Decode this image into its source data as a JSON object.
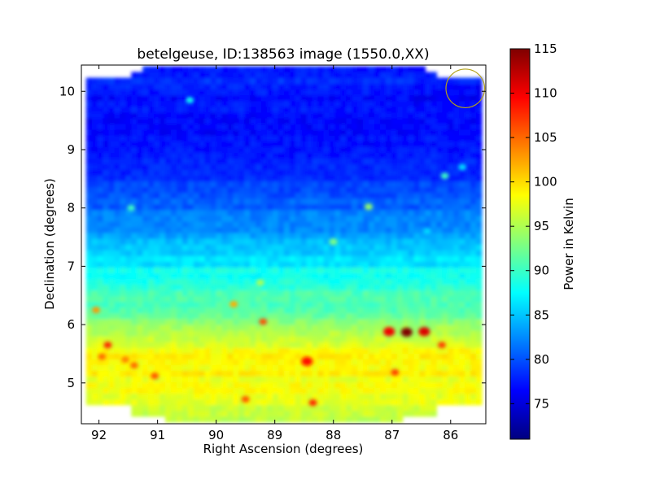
{
  "chart_data": {
    "type": "heatmap",
    "title": "betelgeuse, ID:138563 image (1550.0,XX)",
    "xlabel": "Right Ascension (degrees)",
    "ylabel": "Declination (degrees)",
    "xlim": [
      92.3,
      85.4
    ],
    "ylim": [
      4.3,
      10.45
    ],
    "x_ticks": [
      92,
      91,
      90,
      89,
      88,
      87,
      86
    ],
    "y_ticks": [
      5,
      6,
      7,
      8,
      9,
      10
    ],
    "colorbar": {
      "label": "Power in Kelvin",
      "colormap": "jet",
      "range": [
        71,
        115
      ],
      "ticks": [
        75,
        80,
        85,
        90,
        95,
        100,
        105,
        110,
        115
      ]
    },
    "dec_profile": {
      "dec": [
        4.4,
        4.7,
        5.0,
        5.3,
        5.5,
        5.75,
        6.0,
        6.2,
        6.4,
        6.6,
        6.8,
        7.0,
        7.3,
        7.6,
        8.0,
        8.5,
        9.0,
        9.5,
        10.0,
        10.4
      ],
      "power": [
        96,
        97,
        98,
        99,
        98.5,
        97,
        94,
        92,
        91,
        90,
        89,
        87,
        85,
        83,
        81,
        79,
        77.5,
        76.5,
        77.5,
        78
      ]
    },
    "hotspots": [
      {
        "ra": 86.75,
        "dec": 5.87,
        "power": 115
      },
      {
        "ra": 86.45,
        "dec": 5.88,
        "power": 111
      },
      {
        "ra": 87.05,
        "dec": 5.88,
        "power": 110
      },
      {
        "ra": 91.85,
        "dec": 5.65,
        "power": 108
      },
      {
        "ra": 91.55,
        "dec": 5.4,
        "power": 104
      },
      {
        "ra": 91.95,
        "dec": 5.45,
        "power": 105
      },
      {
        "ra": 91.05,
        "dec": 5.12,
        "power": 106
      },
      {
        "ra": 91.4,
        "dec": 5.3,
        "power": 105
      },
      {
        "ra": 86.95,
        "dec": 5.18,
        "power": 107
      },
      {
        "ra": 86.15,
        "dec": 5.65,
        "power": 107
      },
      {
        "ra": 88.45,
        "dec": 5.37,
        "power": 109
      },
      {
        "ra": 88.35,
        "dec": 4.66,
        "power": 108
      },
      {
        "ra": 89.5,
        "dec": 4.72,
        "power": 106
      },
      {
        "ra": 89.2,
        "dec": 6.05,
        "power": 106
      },
      {
        "ra": 92.05,
        "dec": 6.25,
        "power": 103
      },
      {
        "ra": 89.7,
        "dec": 6.35,
        "power": 102
      },
      {
        "ra": 87.4,
        "dec": 8.02,
        "power": 94
      },
      {
        "ra": 89.25,
        "dec": 6.72,
        "power": 95
      },
      {
        "ra": 90.45,
        "dec": 9.85,
        "power": 88
      },
      {
        "ra": 86.1,
        "dec": 8.55,
        "power": 90
      },
      {
        "ra": 91.45,
        "dec": 8.0,
        "power": 90
      },
      {
        "ra": 88.0,
        "dec": 7.42,
        "power": 93
      },
      {
        "ra": 85.8,
        "dec": 8.7,
        "power": 86
      },
      {
        "ra": 86.4,
        "dec": 7.6,
        "power": 86
      }
    ],
    "circle_marker": {
      "ra": 85.75,
      "dec": 10.05,
      "radius_deg": 0.33,
      "color": "#b4a21c"
    }
  }
}
